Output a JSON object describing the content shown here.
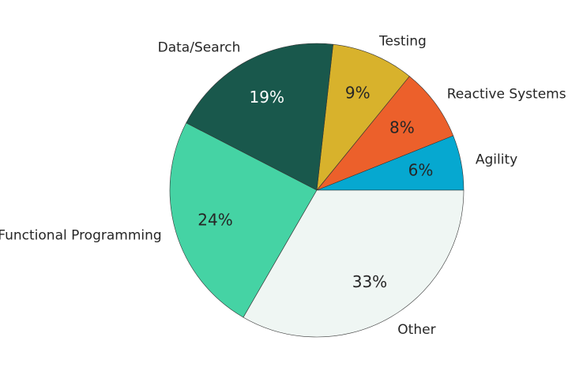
{
  "chart_data": {
    "type": "pie",
    "start_angle_deg": 0,
    "direction": "counterclockwise",
    "slices": [
      {
        "label": "Agility",
        "percent_label": "6%",
        "value": 6,
        "color": "#06a8d0",
        "pct_color": "#262626"
      },
      {
        "label": "Reactive Systems",
        "percent_label": "8%",
        "value": 8,
        "color": "#ec602b",
        "pct_color": "#262626"
      },
      {
        "label": "Testing",
        "percent_label": "9%",
        "value": 9,
        "color": "#d8b22c",
        "pct_color": "#262626"
      },
      {
        "label": "Data/Search",
        "percent_label": "19%",
        "value": 19,
        "color": "#19584c",
        "pct_color": "#ffffff"
      },
      {
        "label": "Functional Programming",
        "percent_label": "24%",
        "value": 24,
        "color": "#45d3a4",
        "pct_color": "#262626"
      },
      {
        "label": "Other",
        "percent_label": "33%",
        "value": 33,
        "color": "#eff6f3",
        "pct_color": "#262626"
      }
    ]
  }
}
